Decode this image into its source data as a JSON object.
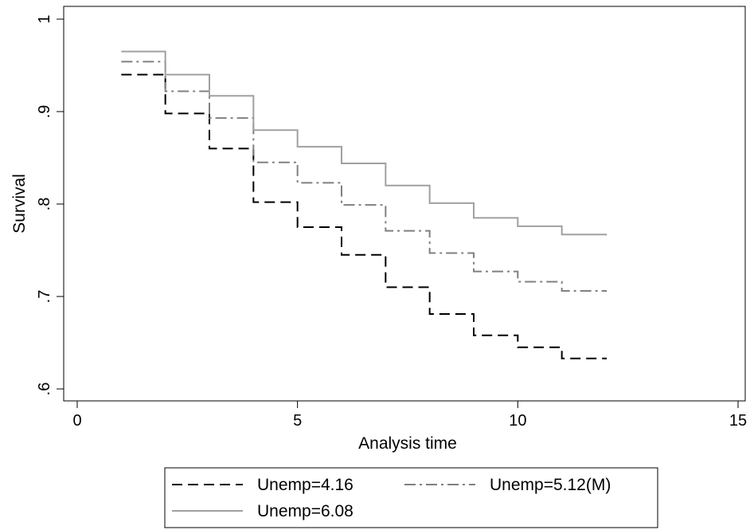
{
  "chart_data": {
    "type": "line",
    "style": "step",
    "xlabel": "Analysis time",
    "ylabel": "Survival",
    "xlim": [
      0,
      15
    ],
    "ylim": [
      0.6,
      1.0
    ],
    "xticks": [
      0,
      5,
      10,
      15
    ],
    "xtick_labels": [
      "0",
      "5",
      "10",
      "15"
    ],
    "yticks": [
      0.6,
      0.7,
      0.8,
      0.9,
      1.0
    ],
    "ytick_labels": [
      ".6",
      ".7",
      ".8",
      ".9",
      "1"
    ],
    "grid": false,
    "legend_position": "bottom",
    "series": [
      {
        "name": "Unemp=4.16",
        "dash": "dashed",
        "color": "#000000",
        "x": [
          1,
          2,
          3,
          4,
          5,
          6,
          7,
          8,
          9,
          10,
          11,
          12
        ],
        "y": [
          0.94,
          0.898,
          0.86,
          0.802,
          0.775,
          0.745,
          0.71,
          0.681,
          0.658,
          0.645,
          0.633,
          0.632
        ]
      },
      {
        "name": "Unemp=5.12(M)",
        "dash": "dashdot",
        "color": "#808080",
        "x": [
          1,
          2,
          3,
          4,
          5,
          6,
          7,
          8,
          9,
          10,
          11,
          12
        ],
        "y": [
          0.954,
          0.922,
          0.893,
          0.845,
          0.823,
          0.799,
          0.771,
          0.747,
          0.727,
          0.716,
          0.706,
          0.705
        ]
      },
      {
        "name": "Unemp=6.08",
        "dash": "solid",
        "color": "#a0a0a0",
        "x": [
          1,
          2,
          3,
          4,
          5,
          6,
          7,
          8,
          9,
          10,
          11,
          12
        ],
        "y": [
          0.965,
          0.94,
          0.917,
          0.88,
          0.862,
          0.844,
          0.82,
          0.801,
          0.785,
          0.776,
          0.767,
          0.766
        ]
      }
    ]
  }
}
